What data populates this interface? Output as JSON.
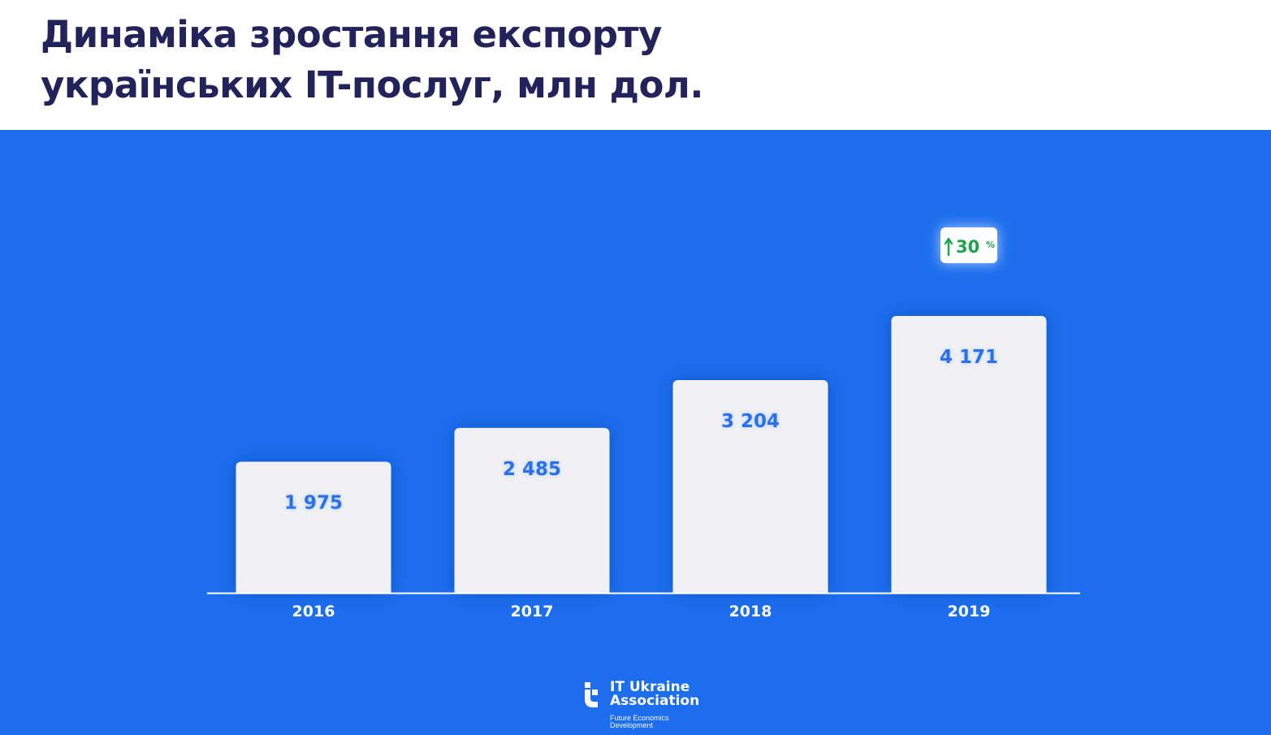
{
  "title": {
    "line1": "Динаміка зростання експорту",
    "line2": "українських IT-послуг, млн дол."
  },
  "colors": {
    "background": "#1c6eee",
    "bar": "#f1f1f3",
    "value_text": "#2a6fe8",
    "axis_text": "#ffffff",
    "badge_text": "#1aa34a",
    "title": "#23235b"
  },
  "chart_data": {
    "type": "bar",
    "categories": [
      "2016",
      "2017",
      "2018",
      "2019"
    ],
    "values": [
      1975,
      2485,
      3204,
      4171
    ],
    "value_labels": [
      "1 975",
      "2 485",
      "3 204",
      "4 171"
    ],
    "ylim": [
      0,
      4400
    ],
    "grid": false,
    "annotation": {
      "category": "2019",
      "icon": "arrow-up-icon",
      "text": "30",
      "unit": "%"
    }
  },
  "logo": {
    "name_line1": "IT Ukraine",
    "name_line2": "Association",
    "tagline_line1": "Future Economics",
    "tagline_line2": "Development"
  }
}
